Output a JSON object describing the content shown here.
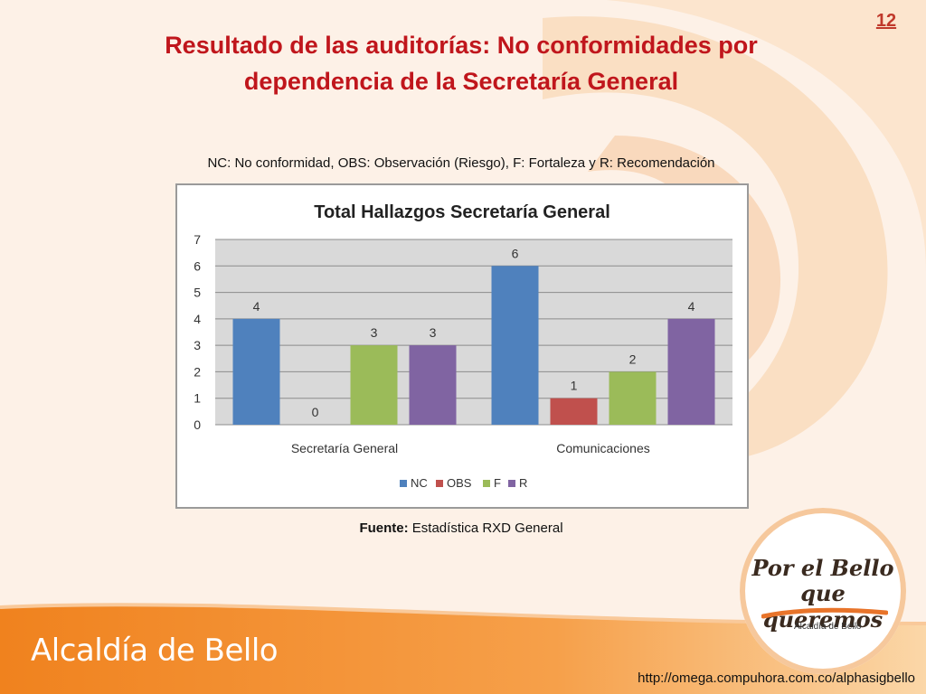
{
  "page_number": "12",
  "title_line1": "Resultado de las auditorías: No conformidades por",
  "title_line2": "dependencia de la Secretaría General",
  "legend_note": "NC: No conformidad, OBS: Observación (Riesgo), F: Fortaleza y R: Recomendación",
  "source_label": "Fuente:",
  "source_text": " Estadística RXD General",
  "footer_brand": "Alcaldía de Bello",
  "footer_url": "http://omega.compuhora.com.co/alphasigbello",
  "logo": {
    "line1": "Por el Bello",
    "line2": "que queremos",
    "caption": "Alcaldía de Bello"
  },
  "chart_data": {
    "type": "bar",
    "title": "Total Hallazgos Secretaría General",
    "categories": [
      "Secretaría General",
      "Comunicaciones"
    ],
    "series": [
      {
        "name": "NC",
        "values": [
          4,
          6
        ],
        "color": "#4f81bd"
      },
      {
        "name": "OBS",
        "values": [
          0,
          1
        ],
        "color": "#c0504d"
      },
      {
        "name": "F",
        "values": [
          3,
          2
        ],
        "color": "#9bbb59"
      },
      {
        "name": "R",
        "values": [
          3,
          4
        ],
        "color": "#8064a2"
      }
    ],
    "ylim": [
      0,
      7
    ],
    "yticks": [
      0,
      1,
      2,
      3,
      4,
      5,
      6,
      7
    ],
    "grid": true,
    "data_labels": true,
    "legend_position": "bottom"
  }
}
